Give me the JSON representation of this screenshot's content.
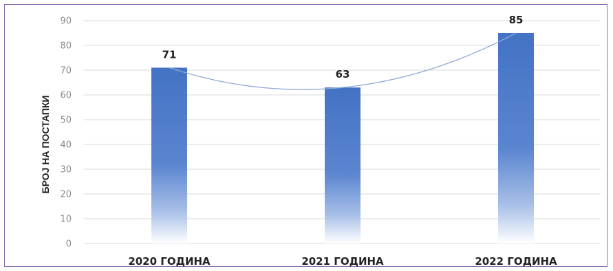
{
  "chart_data": {
    "type": "bar",
    "categories": [
      "2020 ГОДИНА",
      "2021 ГОДИНА",
      "2022 ГОДИНА"
    ],
    "values": [
      71,
      63,
      85
    ],
    "title": "",
    "xlabel": "",
    "ylabel": "БРОЈ НА ПОСТАПКИ",
    "ylim": [
      0,
      90
    ],
    "yticks": [
      0,
      10,
      20,
      30,
      40,
      50,
      60,
      70,
      80,
      90
    ],
    "grid": true,
    "data_labels": true,
    "trendline": "polynomial",
    "bar_color": "#4472c4",
    "trend_color": "#8fa9d6",
    "grid_color": "#d9d9d9"
  }
}
